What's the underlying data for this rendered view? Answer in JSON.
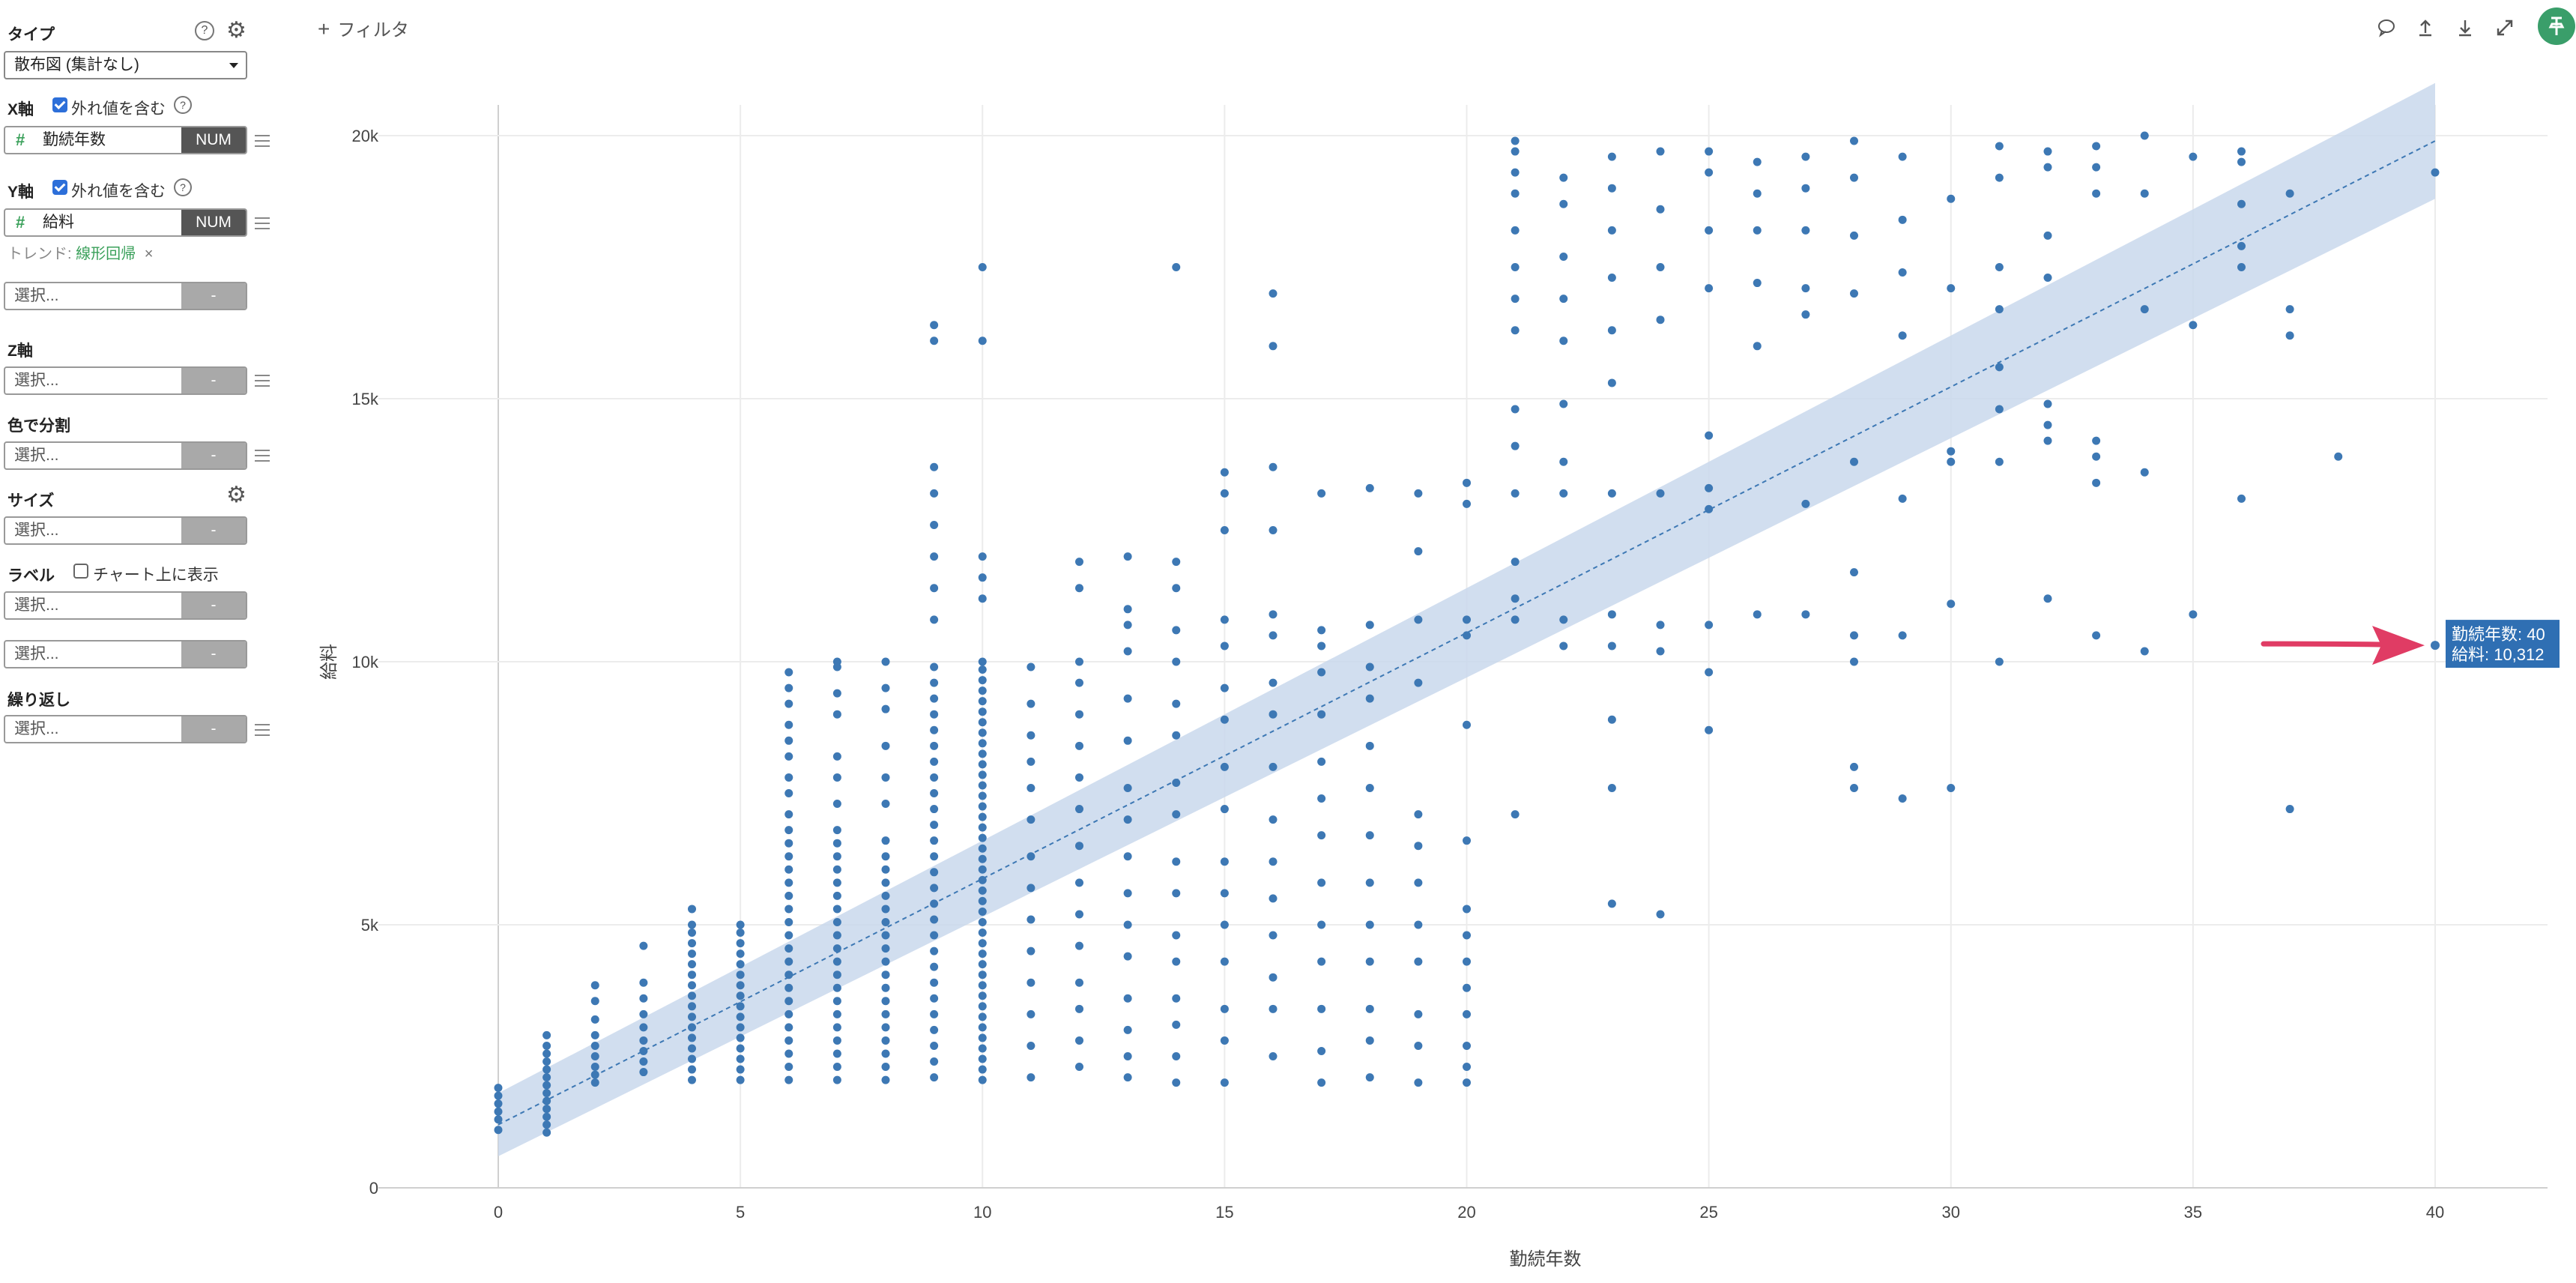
{
  "sidebar": {
    "type": {
      "title": "タイプ",
      "value": "散布図 (集計なし)"
    },
    "x_axis": {
      "title": "X軸",
      "outlier_label": "外れ値を含む",
      "field": "勤続年数",
      "field_type": "NUM"
    },
    "y_axis": {
      "title": "Y軸",
      "outlier_label": "外れ値を含む",
      "field": "給料",
      "field_type": "NUM",
      "trend_label": "トレンド:",
      "trend_value": "線形回帰"
    },
    "extra_select": {
      "placeholder": "選択...",
      "type": "-"
    },
    "z_axis": {
      "title": "Z軸",
      "placeholder": "選択...",
      "type": "-"
    },
    "color_split": {
      "title": "色で分割",
      "placeholder": "選択...",
      "type": "-"
    },
    "size": {
      "title": "サイズ",
      "placeholder": "選択...",
      "type": "-"
    },
    "label": {
      "title": "ラベル",
      "show_on_chart": "チャート上に表示",
      "placeholder": "選択...",
      "type": "-",
      "placeholder2": "選択...",
      "type2": "-"
    },
    "repeat": {
      "title": "繰り返し",
      "placeholder": "選択...",
      "type": "-"
    }
  },
  "header": {
    "filter_label": "フィルタ",
    "icons": [
      "comment-icon",
      "upload-icon",
      "download-icon",
      "expand-icon",
      "pin-icon"
    ]
  },
  "tooltip": {
    "line1": "勤続年数: 40",
    "line2": "給料: 10,312"
  },
  "colors": {
    "point": "#3d78b4",
    "band": "#c9d8ec",
    "trend": "#3d78b4",
    "tooltip_bg": "#2f6fb3",
    "arrow": "#e03c64"
  },
  "chart_data": {
    "type": "scatter",
    "xlabel": "勤続年数",
    "ylabel": "給料",
    "xlim": [
      -2.5,
      42.5
    ],
    "ylim": [
      0,
      20500
    ],
    "x_ticks": [
      0,
      5,
      10,
      15,
      20,
      25,
      30,
      35,
      40
    ],
    "x_tick_labels": [
      "0",
      "5",
      "10",
      "15",
      "20",
      "25",
      "30",
      "35",
      "40"
    ],
    "y_ticks": [
      0,
      5000,
      10000,
      15000,
      20000
    ],
    "y_tick_labels": [
      "0",
      "5k",
      "10k",
      "15k",
      "20k"
    ],
    "grid": true,
    "trend": {
      "type": "linear",
      "from": [
        0,
        1200
      ],
      "to": [
        40,
        19900
      ],
      "band_halfwidth_start": 600,
      "band_halfwidth_end": 1100
    },
    "highlight": {
      "x": 40,
      "y": 10312
    },
    "columns": [
      {
        "x": 0,
        "ys": [
          1100,
          1300,
          1450,
          1600,
          1750,
          1900
        ]
      },
      {
        "x": 1,
        "ys": [
          1050,
          1200,
          1350,
          1500,
          1650,
          1800,
          1950,
          2100,
          2250,
          2400,
          2550,
          2700,
          2900
        ]
      },
      {
        "x": 2,
        "ys": [
          2000,
          2150,
          2300,
          2500,
          2700,
          2900,
          3200,
          3550,
          3850
        ]
      },
      {
        "x": 3,
        "ys": [
          2200,
          2400,
          2600,
          2800,
          3050,
          3300,
          3600,
          3900,
          4600
        ]
      },
      {
        "x": 4,
        "ys": [
          2050,
          2250,
          2450,
          2650,
          2850,
          3050,
          3250,
          3450,
          3650,
          3850,
          4050,
          4250,
          4450,
          4650,
          4850,
          5000,
          5300
        ]
      },
      {
        "x": 5,
        "ys": [
          2050,
          2250,
          2450,
          2650,
          2850,
          3050,
          3250,
          3450,
          3650,
          3850,
          4050,
          4250,
          4450,
          4650,
          4850,
          5000
        ]
      },
      {
        "x": 6,
        "ys": [
          2050,
          2300,
          2550,
          2800,
          3050,
          3300,
          3550,
          3800,
          4050,
          4300,
          4550,
          4800,
          5050,
          5300,
          5550,
          5800,
          6050,
          6300,
          6550,
          6800,
          7100,
          7500,
          7800,
          8200,
          8500,
          8800,
          9200,
          9500,
          9800
        ]
      },
      {
        "x": 7,
        "ys": [
          2050,
          2300,
          2550,
          2800,
          3050,
          3300,
          3550,
          3800,
          4050,
          4300,
          4550,
          4800,
          5050,
          5300,
          5550,
          5800,
          6050,
          6300,
          6550,
          6800,
          7300,
          7800,
          8200,
          9000,
          9400,
          9900,
          10000
        ]
      },
      {
        "x": 8,
        "ys": [
          2050,
          2300,
          2550,
          2800,
          3050,
          3300,
          3550,
          3800,
          4050,
          4300,
          4550,
          4800,
          5050,
          5300,
          5550,
          5800,
          6050,
          6300,
          6600,
          7300,
          7800,
          8400,
          9100,
          9500,
          10000
        ]
      },
      {
        "x": 9,
        "ys": [
          2100,
          2400,
          2700,
          3000,
          3300,
          3600,
          3900,
          4200,
          4500,
          4800,
          5100,
          5400,
          5700,
          6000,
          6300,
          6600,
          6900,
          7200,
          7500,
          7800,
          8100,
          8400,
          8700,
          9000,
          9300,
          9600,
          9900,
          10800,
          11400,
          12000,
          12600,
          13200,
          13700,
          16100,
          16400
        ]
      },
      {
        "x": 10,
        "ys": [
          2050,
          2250,
          2450,
          2650,
          2850,
          3050,
          3250,
          3450,
          3650,
          3850,
          4050,
          4250,
          4450,
          4650,
          4850,
          5050,
          5250,
          5450,
          5650,
          5850,
          6050,
          6250,
          6450,
          6650,
          6850,
          7050,
          7250,
          7450,
          7650,
          7850,
          8050,
          8250,
          8450,
          8650,
          8850,
          9050,
          9250,
          9450,
          9650,
          9850,
          10000,
          11200,
          11600,
          12000,
          16100,
          17500
        ]
      },
      {
        "x": 11,
        "ys": [
          2100,
          2700,
          3300,
          3900,
          4500,
          5100,
          5700,
          6300,
          7000,
          7600,
          8100,
          8600,
          9200,
          9900
        ]
      },
      {
        "x": 12,
        "ys": [
          2300,
          2800,
          3400,
          3900,
          4600,
          5200,
          5800,
          6500,
          7200,
          7800,
          8400,
          9000,
          9600,
          10000,
          11400,
          11900
        ]
      },
      {
        "x": 13,
        "ys": [
          2100,
          2500,
          3000,
          3600,
          4400,
          5000,
          5600,
          6300,
          7000,
          7600,
          8500,
          9300,
          10200,
          10700,
          11000,
          12000
        ]
      },
      {
        "x": 14,
        "ys": [
          2000,
          2500,
          3100,
          3600,
          4300,
          4800,
          5600,
          6200,
          7100,
          7700,
          8600,
          9200,
          10000,
          10600,
          11400,
          11900,
          17500
        ]
      },
      {
        "x": 15,
        "ys": [
          2000,
          2800,
          3400,
          4300,
          5000,
          5600,
          6200,
          7200,
          8000,
          8900,
          9500,
          10300,
          10800,
          12500,
          13200,
          13600
        ]
      },
      {
        "x": 16,
        "ys": [
          2500,
          3400,
          4000,
          4800,
          5500,
          6200,
          7000,
          8000,
          9000,
          9600,
          10500,
          10900,
          12500,
          13700,
          16000,
          17000
        ]
      },
      {
        "x": 17,
        "ys": [
          2000,
          2600,
          3400,
          4300,
          5000,
          5800,
          6700,
          7400,
          8100,
          9000,
          9800,
          10300,
          10600,
          13200
        ]
      },
      {
        "x": 18,
        "ys": [
          2100,
          2800,
          3400,
          4300,
          5000,
          5800,
          6700,
          7600,
          8400,
          9300,
          9900,
          10700,
          13300
        ]
      },
      {
        "x": 19,
        "ys": [
          2000,
          2700,
          3300,
          4300,
          5000,
          5800,
          6500,
          7100,
          9600,
          10800,
          12100,
          13200
        ]
      },
      {
        "x": 20,
        "ys": [
          2000,
          2300,
          2700,
          3300,
          3800,
          4300,
          4800,
          5300,
          6600,
          8800,
          10500,
          10800,
          13000,
          13400
        ]
      },
      {
        "x": 21,
        "ys": [
          7100,
          10800,
          11200,
          11900,
          13200,
          14100,
          14800,
          16300,
          16900,
          17500,
          18200,
          18900,
          19300,
          19700,
          19900
        ]
      },
      {
        "x": 22,
        "ys": [
          10300,
          10800,
          13200,
          13800,
          14900,
          16100,
          16900,
          17700,
          18700,
          19200
        ]
      },
      {
        "x": 23,
        "ys": [
          5400,
          7600,
          8900,
          10300,
          10900,
          13200,
          15300,
          16300,
          17300,
          18200,
          19000,
          19600
        ]
      },
      {
        "x": 24,
        "ys": [
          5200,
          10200,
          10700,
          13200,
          16500,
          17500,
          18600,
          19700
        ]
      },
      {
        "x": 25,
        "ys": [
          8700,
          9800,
          10700,
          12900,
          13300,
          14300,
          17100,
          18200,
          19300,
          19700
        ]
      },
      {
        "x": 26,
        "ys": [
          10900,
          16000,
          17200,
          18200,
          18900,
          19500
        ]
      },
      {
        "x": 27,
        "ys": [
          10900,
          13000,
          16600,
          17100,
          18200,
          19000,
          19600
        ]
      },
      {
        "x": 28,
        "ys": [
          7600,
          8000,
          10000,
          10500,
          11700,
          13800,
          17000,
          18100,
          19200,
          19900
        ]
      },
      {
        "x": 29,
        "ys": [
          7400,
          10500,
          13100,
          16200,
          17400,
          18400,
          19600
        ]
      },
      {
        "x": 30,
        "ys": [
          7600,
          11100,
          13800,
          14000,
          17100,
          18800
        ]
      },
      {
        "x": 31,
        "ys": [
          10000,
          13800,
          14800,
          15600,
          16700,
          17500,
          19200,
          19800
        ]
      },
      {
        "x": 32,
        "ys": [
          11200,
          14200,
          14500,
          14900,
          17300,
          18100,
          19400,
          19700
        ]
      },
      {
        "x": 33,
        "ys": [
          10500,
          13400,
          13900,
          14200,
          18900,
          19400,
          19800
        ]
      },
      {
        "x": 34,
        "ys": [
          10200,
          13600,
          16700,
          18900,
          20000
        ]
      },
      {
        "x": 35,
        "ys": [
          10900,
          16400,
          19600
        ]
      },
      {
        "x": 36,
        "ys": [
          13100,
          17500,
          17900,
          18700,
          19500,
          19700
        ]
      },
      {
        "x": 37,
        "ys": [
          7200,
          16200,
          16700,
          18900
        ]
      },
      {
        "x": 38,
        "ys": [
          13900
        ]
      },
      {
        "x": 40,
        "ys": [
          19300
        ]
      }
    ]
  }
}
